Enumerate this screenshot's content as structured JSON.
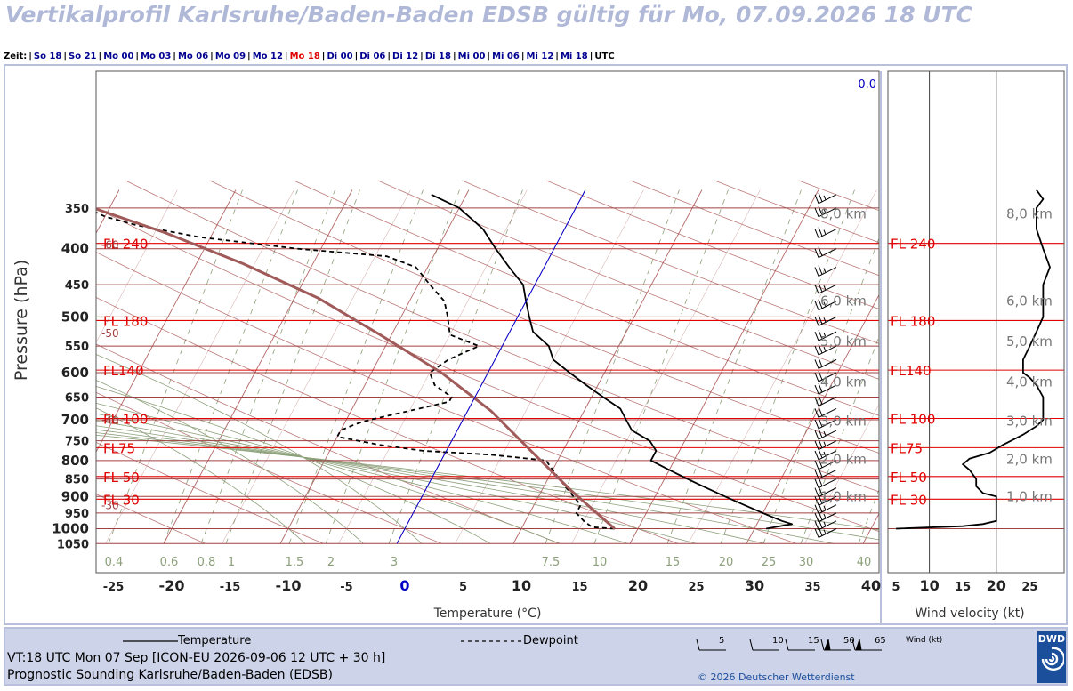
{
  "title": "Vertikalprofil Karlsruhe/Baden-Baden EDSB gültig für Mo, 07.09.2026 18 UTC",
  "timebar": {
    "label": "Zeit:",
    "items": [
      "So 18",
      "So 21",
      "Mo 00",
      "Mo 03",
      "Mo 06",
      "Mo 09",
      "Mo 12",
      "Mo 18",
      "Di 00",
      "Di 06",
      "Di 12",
      "Di 18",
      "Mi 00",
      "Mi 06",
      "Mi 12",
      "Mi 18"
    ],
    "active": "Mo 18",
    "unit": "UTC"
  },
  "colors": {
    "temperature": "#000000",
    "dewpoint": "#000000",
    "parcel": "#a05a5a",
    "isotherm_zero": "#0000d0",
    "flight_level": "#e00000",
    "isobar": "#a04040",
    "dry_adiabat": "#a04040",
    "moist_adiabat": "#8ca07a",
    "mixing_ratio": "#8ca07a"
  },
  "chart_data": [
    {
      "type": "line",
      "subtype": "skew-t",
      "xlabel": "Temperature (°C)",
      "ylabel": "Pressure (hPa)",
      "xlim": [
        -25,
        40
      ],
      "ylim": [
        1050,
        330
      ],
      "y_scale": "log",
      "x_ticks": [
        -25,
        -20,
        -15,
        -10,
        -5,
        0,
        5,
        10,
        15,
        20,
        25,
        30,
        35,
        40
      ],
      "y_ticks": [
        350,
        400,
        450,
        500,
        550,
        600,
        650,
        700,
        750,
        800,
        850,
        900,
        950,
        1000,
        1050
      ],
      "grid": true,
      "series": [
        {
          "name": "Temperature",
          "style": "solid",
          "points": [
            [
              31,
              1000
            ],
            [
              33,
              985
            ],
            [
              32,
              975
            ],
            [
              30,
              950
            ],
            [
              28,
              925
            ],
            [
              26,
              900
            ],
            [
              24,
              875
            ],
            [
              22,
              850
            ],
            [
              20,
              825
            ],
            [
              18,
              800
            ],
            [
              18,
              775
            ],
            [
              17,
              750
            ],
            [
              15,
              725
            ],
            [
              14,
              700
            ],
            [
              13,
              675
            ],
            [
              11,
              650
            ],
            [
              9,
              625
            ],
            [
              7,
              600
            ],
            [
              5,
              575
            ],
            [
              4,
              550
            ],
            [
              2,
              525
            ],
            [
              1,
              500
            ],
            [
              0,
              475
            ],
            [
              -1,
              450
            ],
            [
              -3,
              425
            ],
            [
              -5,
              400
            ],
            [
              -7,
              375
            ],
            [
              -10,
              350
            ],
            [
              -13,
              335
            ]
          ]
        },
        {
          "name": "Dewpoint",
          "style": "dashed",
          "points": [
            [
              18,
              1000
            ],
            [
              16,
              995
            ],
            [
              15,
              975
            ],
            [
              14,
              950
            ],
            [
              14,
              925
            ],
            [
              13,
              900
            ],
            [
              12,
              875
            ],
            [
              11,
              850
            ],
            [
              10,
              825
            ],
            [
              9,
              800
            ],
            [
              4,
              785
            ],
            [
              -2,
              775
            ],
            [
              -6,
              760
            ],
            [
              -10,
              740
            ],
            [
              -10,
              725
            ],
            [
              -9,
              710
            ],
            [
              -8,
              700
            ],
            [
              -5,
              680
            ],
            [
              -2,
              660
            ],
            [
              -2,
              650
            ],
            [
              -4,
              625
            ],
            [
              -5,
              600
            ],
            [
              -4,
              575
            ],
            [
              -2,
              550
            ],
            [
              -5,
              530
            ],
            [
              -6,
              500
            ],
            [
              -7,
              475
            ],
            [
              -9,
              450
            ],
            [
              -11,
              425
            ],
            [
              -14,
              410
            ],
            [
              -22,
              400
            ],
            [
              -31,
              385
            ],
            [
              -37,
              370
            ],
            [
              -40,
              360
            ],
            [
              -44,
              340
            ],
            [
              -45,
              330
            ]
          ]
        },
        {
          "name": "Parcel",
          "style": "solid",
          "points": [
            [
              18,
              1000
            ],
            [
              12.4,
              880
            ],
            [
              7,
              770
            ],
            [
              2,
              680
            ],
            [
              -4,
              600
            ],
            [
              -11,
              530
            ],
            [
              -18,
              470
            ],
            [
              -26,
              420
            ],
            [
              -34,
              380
            ],
            [
              -44,
              340
            ],
            [
              -46,
              332
            ]
          ]
        },
        {
          "name": "0 °C",
          "style": "solid",
          "points": [
            [
              0,
              1050
            ],
            [
              0,
              330
            ]
          ]
        }
      ],
      "annotations": [
        {
          "text": "FL 240",
          "p": 393
        },
        {
          "text": "FL 180",
          "p": 506
        },
        {
          "text": "FL140",
          "p": 595
        },
        {
          "text": "FL 100",
          "p": 697
        },
        {
          "text": "FL75",
          "p": 767
        },
        {
          "text": "FL 50",
          "p": 843
        },
        {
          "text": "FL 30",
          "p": 908
        }
      ],
      "height_labels": [
        {
          "text": "8,0 km",
          "p": 356
        },
        {
          "text": "6,0 km",
          "p": 473
        },
        {
          "text": "5,0 km",
          "p": 540
        },
        {
          "text": "4,0 km",
          "p": 617
        },
        {
          "text": "3,0 km",
          "p": 701
        },
        {
          "text": "2,0 km",
          "p": 795
        },
        {
          "text": "1,0 km",
          "p": 898
        }
      ],
      "isotherm_labels": [
        {
          "text": "-60",
          "p": 393
        },
        {
          "text": "-50",
          "p": 525
        },
        {
          "text": "-40",
          "p": 697
        },
        {
          "text": "-30",
          "p": 922
        }
      ],
      "mixing_ratio_labels": [
        "0.4",
        "0.6",
        "0.8",
        "1",
        "1.5",
        "2",
        "3",
        "7.5",
        "10",
        "15",
        "20",
        "25",
        "30",
        "40"
      ],
      "zero_level_label": "0.0",
      "wind_barbs": [
        {
          "p": 1000,
          "speed": 15
        },
        {
          "p": 975,
          "speed": 15
        },
        {
          "p": 950,
          "speed": 15
        },
        {
          "p": 925,
          "speed": 15
        },
        {
          "p": 900,
          "speed": 15
        },
        {
          "p": 875,
          "speed": 20
        },
        {
          "p": 850,
          "speed": 20
        },
        {
          "p": 825,
          "speed": 20
        },
        {
          "p": 800,
          "speed": 20
        },
        {
          "p": 775,
          "speed": 15
        },
        {
          "p": 750,
          "speed": 15
        },
        {
          "p": 725,
          "speed": 15
        },
        {
          "p": 700,
          "speed": 20
        },
        {
          "p": 675,
          "speed": 20
        },
        {
          "p": 650,
          "speed": 20
        },
        {
          "p": 625,
          "speed": 20
        },
        {
          "p": 600,
          "speed": 20
        },
        {
          "p": 575,
          "speed": 20
        },
        {
          "p": 550,
          "speed": 15
        },
        {
          "p": 525,
          "speed": 15
        },
        {
          "p": 500,
          "speed": 15
        },
        {
          "p": 475,
          "speed": 15
        },
        {
          "p": 450,
          "speed": 15
        },
        {
          "p": 425,
          "speed": 15
        },
        {
          "p": 400,
          "speed": 20
        },
        {
          "p": 375,
          "speed": 15
        },
        {
          "p": 350,
          "speed": 15
        },
        {
          "p": 335,
          "speed": 15
        }
      ]
    },
    {
      "type": "line",
      "xlabel": "Wind velocity (kt)",
      "xlim": [
        5,
        30
      ],
      "x_ticks": [
        5,
        10,
        15,
        20,
        25
      ],
      "grid": true,
      "series": [
        {
          "name": "Wind velocity",
          "style": "solid",
          "points": [
            [
              5,
              1000
            ],
            [
              15,
              992
            ],
            [
              18,
              985
            ],
            [
              20,
              975
            ],
            [
              20,
              950
            ],
            [
              20,
              925
            ],
            [
              20,
              900
            ],
            [
              18,
              890
            ],
            [
              17,
              870
            ],
            [
              17,
              850
            ],
            [
              16,
              825
            ],
            [
              15,
              810
            ],
            [
              16,
              795
            ],
            [
              19,
              780
            ],
            [
              21,
              760
            ],
            [
              24,
              735
            ],
            [
              26,
              715
            ],
            [
              27,
              700
            ],
            [
              27,
              675
            ],
            [
              27,
              650
            ],
            [
              26,
              625
            ],
            [
              25,
              610
            ],
            [
              24,
              600
            ],
            [
              24,
              575
            ],
            [
              25,
              550
            ],
            [
              26,
              525
            ],
            [
              27,
              500
            ],
            [
              27,
              475
            ],
            [
              27,
              450
            ],
            [
              28,
              425
            ],
            [
              27,
              400
            ],
            [
              26,
              375
            ],
            [
              26,
              350
            ],
            [
              27,
              340
            ],
            [
              26,
              330
            ]
          ]
        }
      ],
      "annotations": [
        {
          "text": "FL 240",
          "p": 393
        },
        {
          "text": "FL 180",
          "p": 506
        },
        {
          "text": "FL140",
          "p": 595
        },
        {
          "text": "FL 100",
          "p": 697
        },
        {
          "text": "FL75",
          "p": 767
        },
        {
          "text": "FL 50",
          "p": 843
        },
        {
          "text": "FL 30",
          "p": 908
        }
      ],
      "height_labels": [
        {
          "text": "8,0 km",
          "p": 356
        },
        {
          "text": "6,0 km",
          "p": 473
        },
        {
          "text": "5,0 km",
          "p": 540
        },
        {
          "text": "4,0 km",
          "p": 617
        },
        {
          "text": "3,0 km",
          "p": 701
        },
        {
          "text": "2,0 km",
          "p": 795
        },
        {
          "text": "1,0 km",
          "p": 898
        }
      ]
    }
  ],
  "footer": {
    "legend_temperature": "Temperature",
    "legend_dewpoint": "Dewpoint",
    "wind_legend_values": [
      "5",
      "10",
      "15",
      "50",
      "65"
    ],
    "wind_legend_unit": "Wind (kt)",
    "valid_time": "VT:18 UTC Mon  07 Sep [ICON-EU 2026-09-06 12 UTC + 30 h]",
    "station": "Prognostic Sounding Karlsruhe/Baden-Baden (EDSB)",
    "copyright": "© 2026 Deutscher Wetterdienst",
    "logo": "DWD"
  }
}
